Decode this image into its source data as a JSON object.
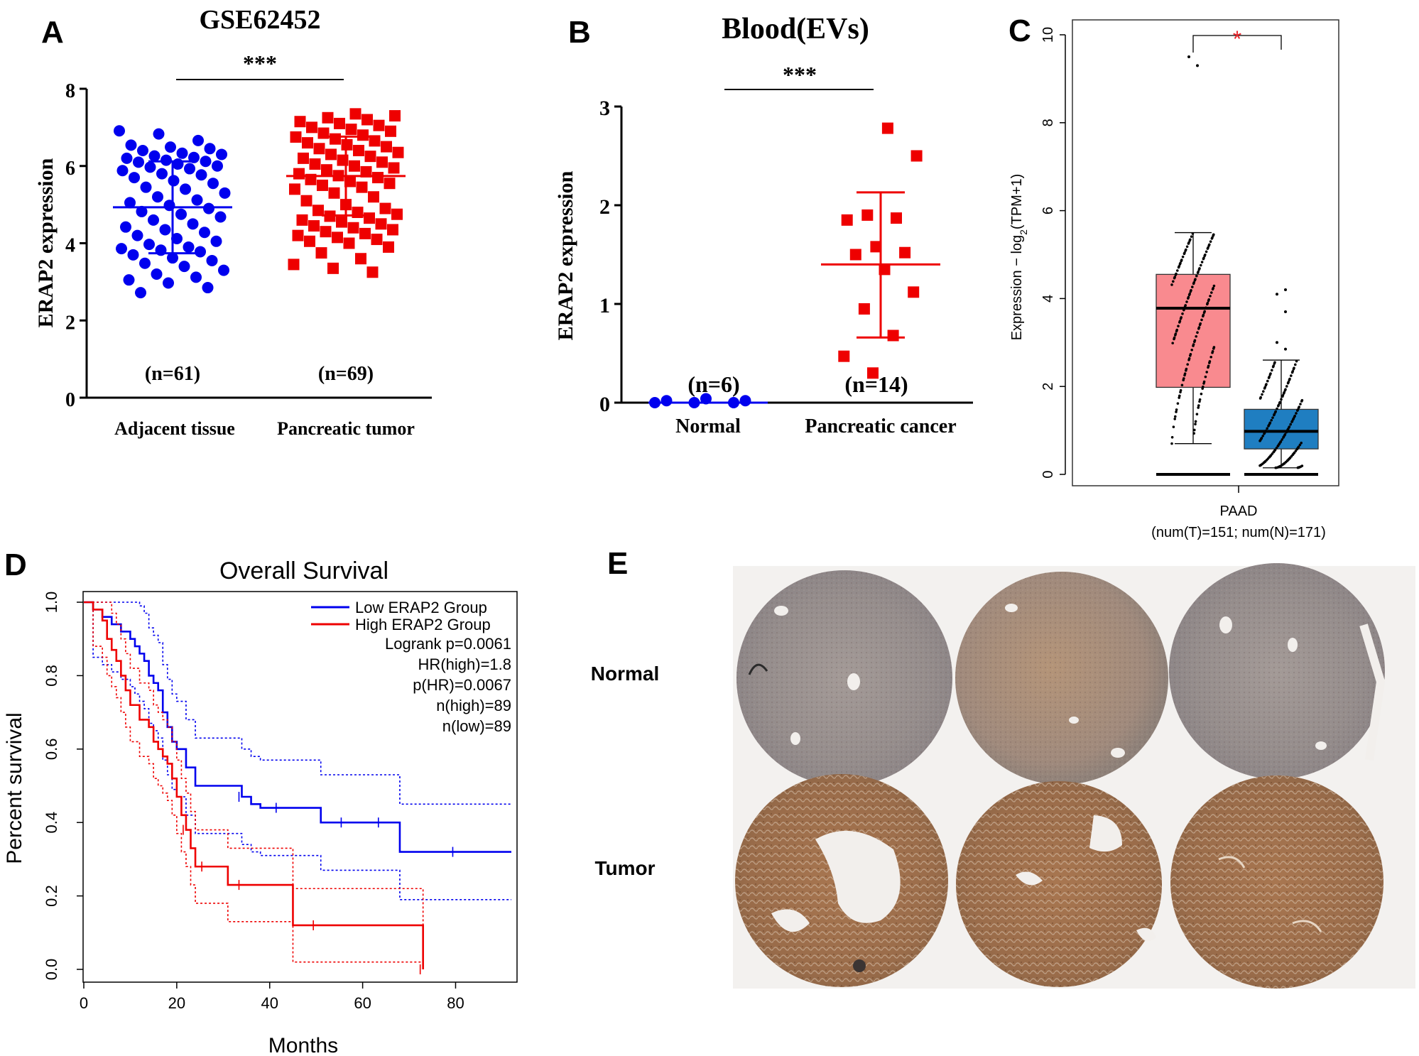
{
  "colors": {
    "blue": "#0000ee",
    "red": "#ee0000",
    "box_tumor": "#f98a8f",
    "box_normal": "#1f7ec1",
    "star_red": "#e8272d"
  },
  "panel_letters": {
    "a": "A",
    "b": "B",
    "c": "C",
    "d": "D",
    "e": "E"
  },
  "chart_data": [
    {
      "panel": "A",
      "type": "scatter",
      "title": "GSE62452",
      "ylabel": "ERAP2 expression",
      "ylim": [
        0,
        8
      ],
      "yticks": [
        "0",
        "2",
        "4",
        "6",
        "8"
      ],
      "categories": [
        "Adjacent tissue",
        "Pancreatic tumor"
      ],
      "group_counts": [
        "(n=61)",
        "(n=69)"
      ],
      "significance": "***",
      "series": [
        {
          "values": [
            6.91,
            6.83,
            6.66,
            6.54,
            6.49,
            6.45,
            6.4,
            6.33,
            6.3,
            6.26,
            6.22,
            6.2,
            6.15,
            6.12,
            6.1,
            6.05,
            6.0,
            5.97,
            5.93,
            5.88,
            5.8,
            5.77,
            5.7,
            5.62,
            5.55,
            5.45,
            5.4,
            5.3,
            5.2,
            5.12,
            5.05,
            4.98,
            4.9,
            4.82,
            4.75,
            4.68,
            4.6,
            4.5,
            4.42,
            4.35,
            4.28,
            4.2,
            4.12,
            4.05,
            3.97,
            3.9,
            3.86,
            3.82,
            3.78,
            3.7,
            3.62,
            3.55,
            3.48,
            3.4,
            3.3,
            3.2,
            3.12,
            3.05,
            2.97,
            2.85,
            2.72
          ],
          "mean": 4.93,
          "sd_low": 3.74,
          "sd_high": 6.12
        },
        {
          "values": [
            7.35,
            7.3,
            7.25,
            7.2,
            7.15,
            7.1,
            7.05,
            7.0,
            6.95,
            6.9,
            6.85,
            6.8,
            6.75,
            6.7,
            6.65,
            6.6,
            6.55,
            6.5,
            6.45,
            6.4,
            6.35,
            6.3,
            6.25,
            6.2,
            6.15,
            6.1,
            6.05,
            6.0,
            5.95,
            5.9,
            5.85,
            5.8,
            5.75,
            5.7,
            5.65,
            5.6,
            5.55,
            5.5,
            5.45,
            5.4,
            5.3,
            5.2,
            5.1,
            5.0,
            4.9,
            4.85,
            4.8,
            4.75,
            4.7,
            4.65,
            4.6,
            4.55,
            4.5,
            4.45,
            4.4,
            4.35,
            4.3,
            4.25,
            4.2,
            4.15,
            4.1,
            4.05,
            4.0,
            3.9,
            3.75,
            3.6,
            3.45,
            3.35,
            3.25
          ],
          "mean": 5.74,
          "sd_low": 4.72,
          "sd_high": 6.76
        }
      ]
    },
    {
      "panel": "B",
      "type": "scatter",
      "title": "Blood(EVs)",
      "ylabel": "ERAP2 expression",
      "ylim": [
        0,
        3
      ],
      "yticks": [
        "0",
        "1",
        "2",
        "3"
      ],
      "categories": [
        "Normal",
        "Pancreatic cancer"
      ],
      "group_counts": [
        "(n=6)",
        "(n=14)"
      ],
      "significance": "***",
      "series": [
        {
          "values": [
            0.0,
            0.0,
            0.0,
            0.02,
            0.04,
            0.02
          ],
          "mean": 0.0,
          "sd_low": 0.0,
          "sd_high": 0.0
        },
        {
          "values": [
            2.78,
            2.5,
            1.9,
            1.87,
            1.85,
            1.58,
            1.52,
            1.5,
            1.35,
            1.12,
            0.95,
            0.68,
            0.47,
            0.3
          ],
          "mean": 1.4,
          "sd_low": 0.66,
          "sd_high": 2.13
        }
      ]
    },
    {
      "panel": "C",
      "type": "box",
      "ylabel_prefix": "Expression − log",
      "ylabel_sub": "2",
      "ylabel_suffix": "(TPM+1)",
      "ylim": [
        0,
        10
      ],
      "yticks": [
        "0",
        "2",
        "4",
        "6",
        "8",
        "10"
      ],
      "xlabel": "PAAD",
      "xlabel_note": "(num(T)=151; num(N)=171)",
      "significance": "*",
      "series": [
        {
          "group": "Tumor",
          "min": 0.7,
          "q1": 1.98,
          "median": 3.78,
          "q3": 4.55,
          "max": 5.5,
          "outliers": [
            0.0,
            9.3,
            9.5
          ]
        },
        {
          "group": "Normal",
          "min": 0.15,
          "q1": 0.58,
          "median": 0.98,
          "q3": 1.48,
          "max": 2.6,
          "outliers": [
            0.0,
            2.85,
            3.0,
            3.7,
            4.1,
            4.2
          ]
        }
      ]
    },
    {
      "panel": "D",
      "type": "line",
      "title": "Overall Survival",
      "xlabel": "Months",
      "ylabel": "Percent survival",
      "xlim": [
        0,
        92
      ],
      "ylim": [
        0,
        1
      ],
      "xticks": [
        "0",
        "20",
        "40",
        "60",
        "80"
      ],
      "yticks": [
        "0.0",
        "0.2",
        "0.4",
        "0.6",
        "0.8",
        "1.0"
      ],
      "legend": [
        "Low ERAP2 Group",
        "High ERAP2 Group"
      ],
      "stats": [
        "Logrank p=0.0061",
        "HR(high)=1.8",
        "p(HR)=0.0067",
        "n(high)=89",
        "n(low)=89"
      ],
      "series": [
        {
          "name": "Low ERAP2 Group",
          "x": [
            0,
            2,
            4,
            6,
            8,
            10,
            11,
            12,
            13,
            14,
            15,
            16,
            17,
            18,
            19,
            20,
            22,
            24,
            34,
            36,
            38,
            42,
            48,
            51,
            56,
            60,
            62,
            64,
            68,
            72,
            80,
            92
          ],
          "y": [
            1.0,
            0.98,
            0.96,
            0.94,
            0.92,
            0.9,
            0.88,
            0.86,
            0.84,
            0.8,
            0.78,
            0.76,
            0.7,
            0.66,
            0.62,
            0.6,
            0.55,
            0.5,
            0.47,
            0.45,
            0.44,
            0.44,
            0.44,
            0.4,
            0.4,
            0.4,
            0.4,
            0.4,
            0.32,
            0.32,
            0.32,
            0.32
          ]
        },
        {
          "name": "High ERAP2 Group",
          "x": [
            0,
            2,
            4,
            5,
            6,
            7,
            8,
            9,
            10,
            12,
            14,
            15,
            16,
            17,
            18,
            19,
            20,
            21,
            22,
            23,
            24,
            26,
            30,
            31,
            34,
            40,
            45,
            50,
            60,
            70,
            73
          ],
          "y": [
            1.0,
            0.98,
            0.95,
            0.9,
            0.87,
            0.84,
            0.8,
            0.76,
            0.72,
            0.68,
            0.66,
            0.62,
            0.6,
            0.58,
            0.56,
            0.52,
            0.47,
            0.42,
            0.38,
            0.33,
            0.28,
            0.28,
            0.28,
            0.23,
            0.23,
            0.23,
            0.12,
            0.12,
            0.12,
            0.12,
            0.0
          ]
        }
      ]
    }
  ],
  "ihc": {
    "row_labels": [
      "Normal",
      "Tumor"
    ]
  }
}
